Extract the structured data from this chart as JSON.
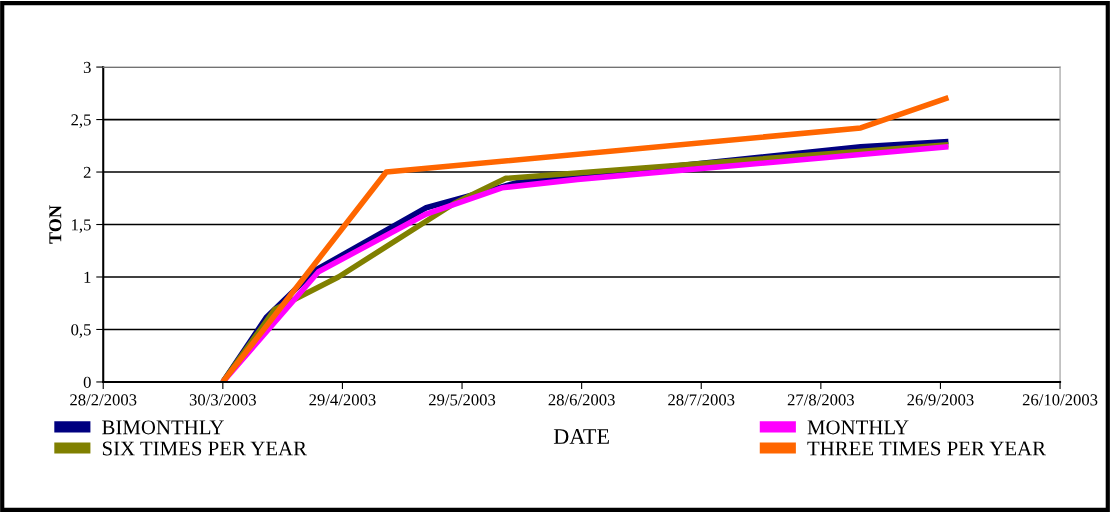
{
  "chart_data": {
    "type": "line",
    "xlabel": "DATE",
    "ylabel": "TON",
    "xlim": [
      "2003-02-28",
      "2003-10-26"
    ],
    "xticks": [
      {
        "value": "2003-02-28",
        "label": "28/2/2003"
      },
      {
        "value": "2003-03-30",
        "label": "30/3/2003"
      },
      {
        "value": "2003-04-29",
        "label": "29/4/2003"
      },
      {
        "value": "2003-05-29",
        "label": "29/5/2003"
      },
      {
        "value": "2003-06-28",
        "label": "28/6/2003"
      },
      {
        "value": "2003-07-28",
        "label": "28/7/2003"
      },
      {
        "value": "2003-08-27",
        "label": "27/8/2003"
      },
      {
        "value": "2003-09-26",
        "label": "26/9/2003"
      },
      {
        "value": "2003-10-26",
        "label": "26/10/2003"
      }
    ],
    "ylim": [
      0,
      3
    ],
    "yticks": [
      {
        "value": 0,
        "label": "0"
      },
      {
        "value": 0.5,
        "label": "0,5"
      },
      {
        "value": 1,
        "label": "1"
      },
      {
        "value": 1.5,
        "label": "1,5"
      },
      {
        "value": 2,
        "label": "2"
      },
      {
        "value": 2.5,
        "label": "2,5"
      },
      {
        "value": 3,
        "label": "3"
      }
    ],
    "grid": "y",
    "legend": "bottom",
    "marker": "none",
    "line_style": "solid",
    "series": [
      {
        "name": "BIMONTHLY",
        "color": "#000080",
        "x": [
          "2003-03-30",
          "2003-04-10",
          "2003-04-22",
          "2003-05-20",
          "2003-06-12",
          "2003-09-06",
          "2003-09-28"
        ],
        "values": [
          0,
          0.62,
          1.06,
          1.66,
          1.9,
          2.24,
          2.29
        ]
      },
      {
        "name": "SIX TIMES PER YEAR",
        "color": "#808000",
        "x": [
          "2003-03-30",
          "2003-04-12",
          "2003-04-28",
          "2003-05-27",
          "2003-06-09",
          "2003-09-28"
        ],
        "values": [
          0,
          0.69,
          1.0,
          1.7,
          1.94,
          2.26
        ]
      },
      {
        "name": "MONTHLY",
        "color": "#ff00ff",
        "x": [
          "2003-03-30",
          "2003-04-23",
          "2003-05-20",
          "2003-06-08",
          "2003-06-27",
          "2003-09-28"
        ],
        "values": [
          0,
          1.05,
          1.6,
          1.85,
          1.93,
          2.24
        ]
      },
      {
        "name": "THREE TIMES PER YEAR",
        "color": "#ff6600",
        "x": [
          "2003-03-30",
          "2003-05-10",
          "2003-09-06",
          "2003-09-28"
        ],
        "values": [
          0,
          2.0,
          2.42,
          2.71
        ]
      }
    ]
  }
}
